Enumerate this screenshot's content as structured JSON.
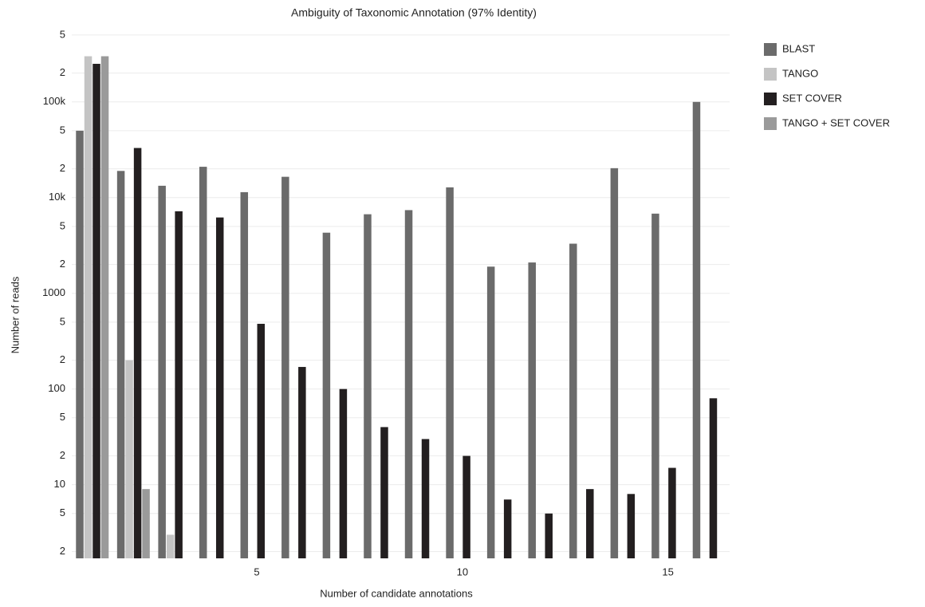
{
  "chart_data": {
    "type": "bar",
    "title": "Ambiguity of Taxonomic Annotation (97% Identity)",
    "x_label": "Number of candidate annotations",
    "y_label": "Number of reads",
    "x": [
      1,
      2,
      3,
      4,
      5,
      6,
      7,
      8,
      9,
      10,
      11,
      12,
      13,
      14,
      15,
      16
    ],
    "xlim": [
      0.5,
      16.5
    ],
    "xticks": [
      5,
      10,
      15
    ],
    "ylim": [
      1.7,
      560000
    ],
    "y_log_scale": true,
    "yticks": [
      2,
      5,
      10,
      {
        "value": 20,
        "label": "2"
      },
      {
        "value": 50,
        "label": "5"
      },
      100,
      {
        "value": 200,
        "label": "2"
      },
      {
        "value": 500,
        "label": "5"
      },
      1000,
      {
        "value": 2000,
        "label": "2"
      },
      {
        "value": 5000,
        "label": "5"
      },
      {
        "value": 10000,
        "label": "10k"
      },
      {
        "value": 20000,
        "label": "2"
      },
      {
        "value": 50000,
        "label": "5"
      },
      {
        "value": 100000,
        "label": "100k"
      },
      {
        "value": 200000,
        "label": "2"
      },
      {
        "value": 500000,
        "label": "5"
      }
    ],
    "grid": true,
    "legend": "right",
    "series": [
      {
        "name": "BLAST",
        "color": "#6b6b6b",
        "values": [
          50000,
          19000,
          13300,
          21000,
          11400,
          16500,
          4300,
          6700,
          7400,
          12800,
          1900,
          2100,
          3300,
          20300,
          6800,
          100000
        ]
      },
      {
        "name": "TANGO",
        "color": "#c4c4c4",
        "values": [
          300000,
          200,
          3,
          null,
          null,
          null,
          null,
          null,
          null,
          null,
          null,
          null,
          null,
          null,
          null,
          null
        ]
      },
      {
        "name": "SET COVER",
        "color": "#231f20",
        "values": [
          250000,
          33000,
          7200,
          6200,
          480,
          170,
          100,
          40,
          30,
          20,
          7,
          5,
          9,
          8,
          15,
          80
        ]
      },
      {
        "name": "TANGO + SET COVER",
        "color": "#9a9a9a",
        "values": [
          300000,
          9,
          null,
          null,
          null,
          null,
          null,
          null,
          null,
          null,
          null,
          null,
          null,
          null,
          null,
          null
        ]
      }
    ]
  }
}
